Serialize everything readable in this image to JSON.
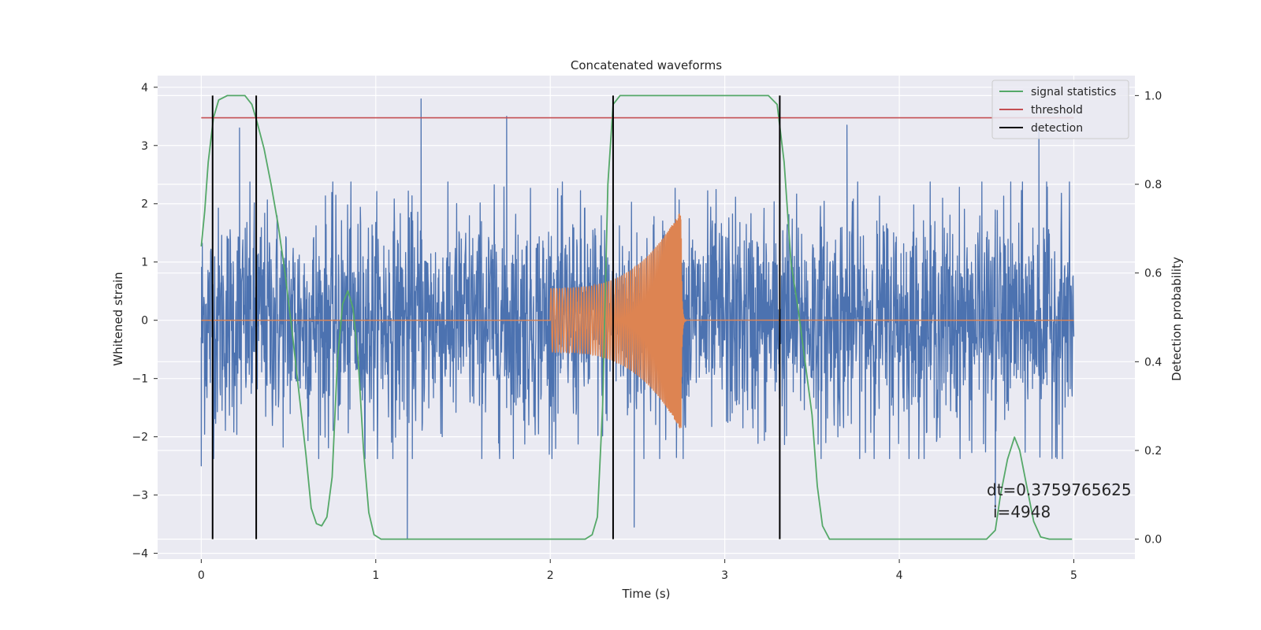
{
  "chart_data": {
    "type": "line",
    "title": "Concatenated waveforms",
    "xlabel": "Time (s)",
    "ylabel": "Whitened strain",
    "ylabel_right": "Detection probability",
    "xlim": [
      -0.25,
      5.35
    ],
    "ylim": [
      -4.1,
      4.2
    ],
    "ylim_right": [
      -0.045,
      1.045
    ],
    "x_ticks": [
      0,
      1,
      2,
      3,
      4,
      5
    ],
    "y_ticks": [
      -4,
      -3,
      -2,
      -1,
      0,
      1,
      2,
      3,
      4
    ],
    "y_ticks_right": [
      0.0,
      0.2,
      0.4,
      0.6,
      0.8,
      1.0
    ],
    "x_tick_labels": [
      "0",
      "1",
      "2",
      "3",
      "4",
      "5"
    ],
    "y_tick_labels": [
      "−4",
      "−3",
      "−2",
      "−1",
      "0",
      "1",
      "2",
      "3",
      "4"
    ],
    "y_tick_labels_right": [
      "0.0",
      "0.2",
      "0.4",
      "0.6",
      "0.8",
      "1.0"
    ],
    "grid": true,
    "legend_position": "top-right",
    "legend": [
      "signal statistics",
      "threshold",
      "detection"
    ],
    "colors": {
      "noise": "#4c72b0",
      "injection": "#dd8452",
      "signal_statistics": "#55a868",
      "threshold": "#c44e52",
      "detection": "#000000",
      "axes_bg": "#eaeaf2",
      "grid": "#ffffff"
    },
    "series": [
      {
        "name": "",
        "axis": "left",
        "kind": "whitened-noise",
        "x_range": [
          0,
          5
        ],
        "amplitude_envelope": 2.5,
        "extremes": [
          {
            "x": 0.0,
            "y": -2.5
          },
          {
            "x": 0.22,
            "y": 3.3
          },
          {
            "x": 1.18,
            "y": -3.75
          },
          {
            "x": 1.26,
            "y": 3.8
          },
          {
            "x": 1.75,
            "y": 3.5
          },
          {
            "x": 2.48,
            "y": -3.55
          },
          {
            "x": 3.7,
            "y": 3.35
          },
          {
            "x": 4.55,
            "y": -3.3
          },
          {
            "x": 4.8,
            "y": 3.3
          }
        ]
      },
      {
        "name": "",
        "axis": "left",
        "kind": "chirp-injection",
        "start": 2.0,
        "merger": 2.75,
        "start_amplitude": 0.55,
        "peak_amplitude": 1.9,
        "end_of_ringdown": 2.78
      },
      {
        "name": "signal statistics",
        "axis": "right",
        "points": [
          [
            0.0,
            0.66
          ],
          [
            0.02,
            0.74
          ],
          [
            0.04,
            0.85
          ],
          [
            0.07,
            0.95
          ],
          [
            0.1,
            0.99
          ],
          [
            0.15,
            1.0
          ],
          [
            0.25,
            1.0
          ],
          [
            0.29,
            0.98
          ],
          [
            0.32,
            0.94
          ],
          [
            0.36,
            0.88
          ],
          [
            0.4,
            0.8
          ],
          [
            0.44,
            0.71
          ],
          [
            0.48,
            0.6
          ],
          [
            0.52,
            0.47
          ],
          [
            0.56,
            0.33
          ],
          [
            0.6,
            0.19
          ],
          [
            0.63,
            0.07
          ],
          [
            0.66,
            0.035
          ],
          [
            0.69,
            0.03
          ],
          [
            0.72,
            0.05
          ],
          [
            0.75,
            0.14
          ],
          [
            0.78,
            0.4
          ],
          [
            0.81,
            0.53
          ],
          [
            0.84,
            0.56
          ],
          [
            0.87,
            0.52
          ],
          [
            0.9,
            0.4
          ],
          [
            0.93,
            0.2
          ],
          [
            0.96,
            0.06
          ],
          [
            0.99,
            0.01
          ],
          [
            1.03,
            0.0
          ],
          [
            2.2,
            0.0
          ],
          [
            2.24,
            0.01
          ],
          [
            2.27,
            0.05
          ],
          [
            2.3,
            0.3
          ],
          [
            2.33,
            0.8
          ],
          [
            2.36,
            0.98
          ],
          [
            2.4,
            1.0
          ],
          [
            3.25,
            1.0
          ],
          [
            3.3,
            0.98
          ],
          [
            3.34,
            0.85
          ],
          [
            3.38,
            0.62
          ],
          [
            3.42,
            0.52
          ],
          [
            3.46,
            0.4
          ],
          [
            3.5,
            0.28
          ],
          [
            3.53,
            0.12
          ],
          [
            3.56,
            0.03
          ],
          [
            3.6,
            0.0
          ],
          [
            4.5,
            0.0
          ],
          [
            4.55,
            0.02
          ],
          [
            4.58,
            0.1
          ],
          [
            4.62,
            0.18
          ],
          [
            4.66,
            0.23
          ],
          [
            4.69,
            0.2
          ],
          [
            4.73,
            0.12
          ],
          [
            4.77,
            0.04
          ],
          [
            4.81,
            0.005
          ],
          [
            4.86,
            0.0
          ],
          [
            4.99,
            0.0
          ]
        ]
      },
      {
        "name": "threshold",
        "axis": "right",
        "points": [
          [
            0.0,
            0.95
          ],
          [
            5.0,
            0.95
          ]
        ]
      },
      {
        "name": "detection",
        "axis": "right",
        "kind": "vlines",
        "ymin": 0.0,
        "ymax": 1.0,
        "x": [
          0.065,
          0.315,
          2.36,
          3.315
        ]
      }
    ],
    "annotation_lines": [
      "dt=0.3759765625",
      "i=4948"
    ]
  }
}
